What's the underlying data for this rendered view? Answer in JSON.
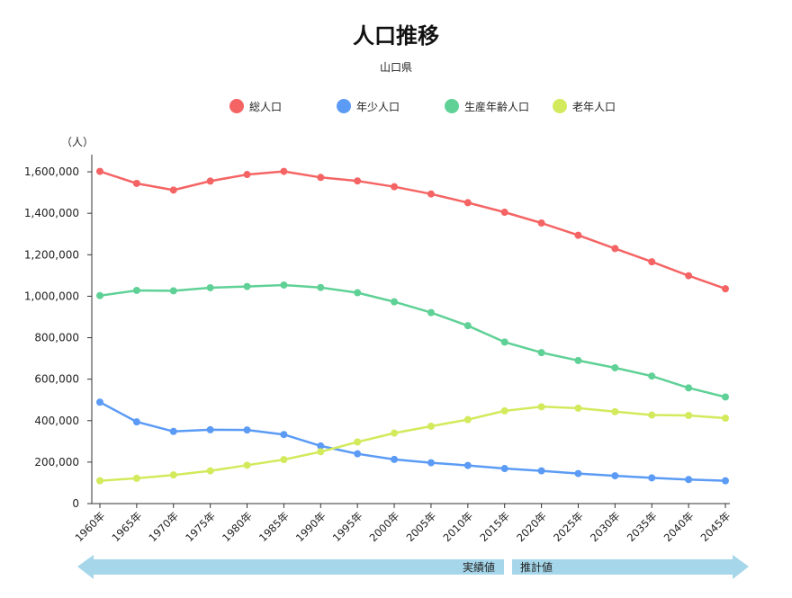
{
  "chart_data": {
    "type": "line",
    "title": "人口推移",
    "subtitle": "山口県",
    "y_unit_label": "（人）",
    "ylim": [
      0,
      1700000
    ],
    "yticks": [
      0,
      200000,
      400000,
      600000,
      800000,
      1000000,
      1200000,
      1400000,
      1600000
    ],
    "ytick_labels": [
      "0",
      "200,000",
      "400,000",
      "600,000",
      "800,000",
      "1,000,000",
      "1,200,000",
      "1,400,000",
      "1,600,000"
    ],
    "categories": [
      "1960年",
      "1965年",
      "1970年",
      "1975年",
      "1980年",
      "1985年",
      "1990年",
      "1995年",
      "2000年",
      "2005年",
      "2010年",
      "2015年",
      "2020年",
      "2025年",
      "2030年",
      "2035年",
      "2040年",
      "2045年"
    ],
    "series": [
      {
        "name": "総人口",
        "color": "#f56464",
        "values": [
          1602000,
          1544000,
          1512000,
          1555000,
          1587000,
          1602000,
          1573000,
          1556000,
          1528000,
          1493000,
          1451000,
          1405000,
          1353000,
          1294000,
          1230000,
          1166000,
          1099000,
          1036000
        ]
      },
      {
        "name": "年少人口",
        "color": "#5b9bf5",
        "values": [
          489000,
          394000,
          348000,
          356000,
          355000,
          333000,
          278000,
          240000,
          213000,
          197000,
          184000,
          169000,
          158000,
          145000,
          134000,
          124000,
          116000,
          110000
        ]
      },
      {
        "name": "生産年齢人口",
        "color": "#5fd196",
        "values": [
          1003000,
          1028000,
          1026000,
          1041000,
          1047000,
          1054000,
          1042000,
          1017000,
          973000,
          921000,
          858000,
          779000,
          728000,
          690000,
          655000,
          615000,
          558000,
          514000
        ]
      },
      {
        "name": "老年人口",
        "color": "#d2ea5c",
        "values": [
          110000,
          122000,
          138000,
          158000,
          185000,
          212000,
          250000,
          297000,
          340000,
          373000,
          405000,
          447000,
          467000,
          460000,
          443000,
          427000,
          425000,
          412000
        ]
      }
    ],
    "legend_position": "top",
    "grid": false,
    "annotations": {
      "actual_label": "実績値",
      "projected_label": "推計値",
      "arrow_color": "#a6d6ea"
    }
  }
}
